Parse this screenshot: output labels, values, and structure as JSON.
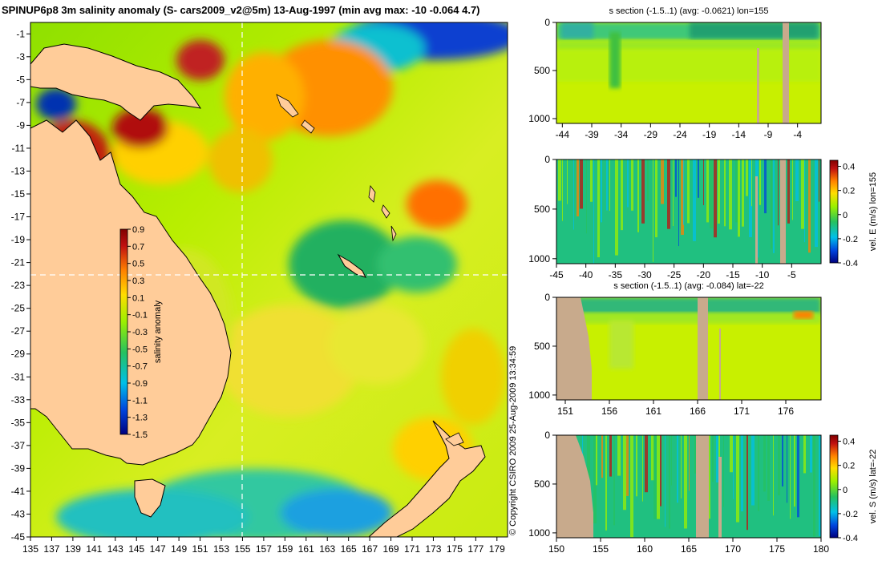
{
  "title": "SPINUP6p8 3m salinity anomaly (S- cars2009_v2@5m) 13-Aug-1997 (min avg max: -10 -0.064 4.7)",
  "copyright": "© Copyright CSIRO 2009   25-Aug-2009 13:34:59",
  "colors": {
    "land_map": "#ffcc99",
    "land_section": "#c8aa8c",
    "colormap": [
      "#00007f",
      "#0044dd",
      "#00c0e8",
      "#26c15f",
      "#9cf000",
      "#ffdd00",
      "#ff8000",
      "#c01010",
      "#800000"
    ]
  },
  "chart_data": [
    {
      "type": "heatmap",
      "name": "salinity anomaly map",
      "title": "SPINUP6p8 3m salinity anomaly (S- cars2009_v2@5m) 13-Aug-1997 (min avg max: -10 -0.064 4.7)",
      "xlim": [
        135,
        180
      ],
      "ylim": [
        -45,
        0
      ],
      "x_ticks": [
        "135",
        "137",
        "139",
        "141",
        "143",
        "145",
        "147",
        "149",
        "151",
        "153",
        "155",
        "157",
        "159",
        "161",
        "163",
        "165",
        "167",
        "169",
        "171",
        "173",
        "175",
        "177",
        "179"
      ],
      "y_ticks": [
        "-1",
        "-3",
        "-5",
        "-7",
        "-9",
        "-11",
        "-13",
        "-15",
        "-17",
        "-19",
        "-21",
        "-23",
        "-25",
        "-27",
        "-29",
        "-31",
        "-33",
        "-35",
        "-37",
        "-39",
        "-41",
        "-43",
        "-45"
      ],
      "section_lines": {
        "lon": 155,
        "lat": -22
      },
      "stats": {
        "min": -10,
        "avg": -0.064,
        "max": 4.7
      },
      "colorbar": {
        "label": "salinity anomaly",
        "range": [
          -1.5,
          0.9
        ],
        "ticks": [
          "0.9",
          "0.7",
          "0.5",
          "0.3",
          "0.1",
          "-0.1",
          "-0.3",
          "-0.5",
          "-0.7",
          "-0.9",
          "-1.1",
          "-1.3",
          "-1.5"
        ]
      }
    },
    {
      "type": "heatmap",
      "name": "s section along lon 155",
      "title": "s section (-1.5..1) (avg: -0.0621) lon=155",
      "xlim": [
        -45,
        0
      ],
      "ylim": [
        1050,
        0
      ],
      "x_ticks": [
        "-44",
        "-39",
        "-34",
        "-29",
        "-24",
        "-19",
        "-14",
        "-9",
        "-4"
      ],
      "y_ticks": [
        "0",
        "500",
        "1000"
      ]
    },
    {
      "type": "heatmap",
      "name": "vel E section along lon 155",
      "title": "",
      "xlim": [
        -45,
        0
      ],
      "ylim": [
        1050,
        0
      ],
      "x_ticks": [
        "-45",
        "-40",
        "-35",
        "-30",
        "-25",
        "-20",
        "-15",
        "-10",
        "-5"
      ],
      "y_ticks": [
        "0",
        "500",
        "1000"
      ],
      "colorbar": {
        "label": "vel. E (m/s) lon=155",
        "range": [
          -0.4,
          0.45
        ],
        "ticks": [
          "0.4",
          "0.2",
          "0",
          "-0.2",
          "-0.4"
        ]
      }
    },
    {
      "type": "heatmap",
      "name": "s section along lat -22",
      "title": "s section (-1.5..1) (avg: -0.084) lat=-22",
      "xlim": [
        150,
        180
      ],
      "ylim": [
        1050,
        0
      ],
      "x_ticks": [
        "151",
        "156",
        "161",
        "166",
        "171",
        "176"
      ],
      "y_ticks": [
        "0",
        "500",
        "1000"
      ]
    },
    {
      "type": "heatmap",
      "name": "vel S section along lat -22",
      "title": "",
      "xlim": [
        150,
        180
      ],
      "ylim": [
        1050,
        0
      ],
      "x_ticks": [
        "150",
        "155",
        "160",
        "165",
        "170",
        "175",
        "180"
      ],
      "y_ticks": [
        "0",
        "500",
        "1000"
      ],
      "colorbar": {
        "label": "vel. S (m/s) lat=-22",
        "range": [
          -0.4,
          0.45
        ],
        "ticks": [
          "0.4",
          "0.2",
          "0",
          "-0.2",
          "-0.4"
        ]
      }
    }
  ]
}
